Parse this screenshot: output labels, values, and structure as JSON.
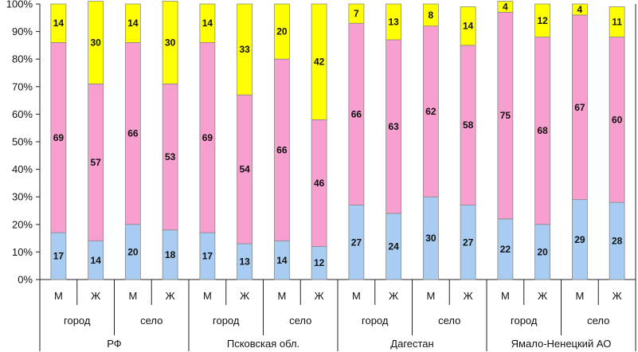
{
  "chart_data": {
    "type": "bar",
    "stacked": true,
    "percent_axis": true,
    "y_ticks": [
      "0%",
      "10%",
      "20%",
      "30%",
      "40%",
      "50%",
      "60%",
      "70%",
      "80%",
      "90%",
      "100%"
    ],
    "ylim": [
      0,
      100
    ],
    "grid": false,
    "legend": "none",
    "regions": [
      "РФ",
      "Псковская обл.",
      "Дагестан",
      "Ямало-Ненецкий АО"
    ],
    "settlements": [
      "город",
      "село"
    ],
    "sexes": [
      "М",
      "Ж"
    ],
    "categories": [
      "РФ / город / М",
      "РФ / город / Ж",
      "РФ / село / М",
      "РФ / село / Ж",
      "Псковская обл. / город / М",
      "Псковская обл. / город / Ж",
      "Псковская обл. / село / М",
      "Псковская обл. / село / Ж",
      "Дагестан / город / М",
      "Дагестан / город / Ж",
      "Дагестан / село / М",
      "Дагестан / село / Ж",
      "Ямало-Ненецкий АО / город / М",
      "Ямало-Ненецкий АО / город / Ж",
      "Ямало-Ненецкий АО / село / М",
      "Ямало-Ненецкий АО / село / Ж"
    ],
    "series": [
      {
        "color": "#a9cdf2",
        "values": [
          17,
          14,
          20,
          18,
          17,
          13,
          14,
          12,
          27,
          24,
          30,
          27,
          22,
          20,
          29,
          28
        ]
      },
      {
        "color": "#f79fcf",
        "values": [
          69,
          57,
          66,
          53,
          69,
          54,
          66,
          46,
          66,
          63,
          62,
          58,
          75,
          68,
          67,
          60
        ]
      },
      {
        "color": "#ffff00",
        "values": [
          14,
          30,
          14,
          30,
          14,
          33,
          20,
          42,
          7,
          13,
          8,
          14,
          4,
          12,
          4,
          11
        ]
      }
    ]
  }
}
